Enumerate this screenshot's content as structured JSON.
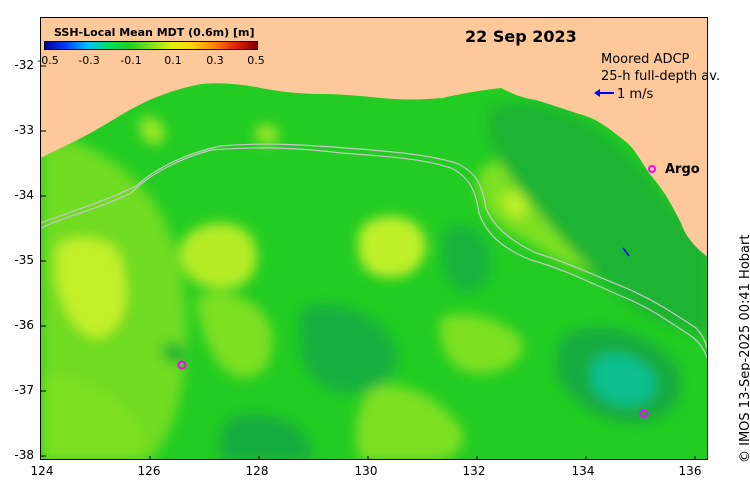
{
  "title": "22 Sep 2023",
  "colorbar": {
    "label": "SSH-Local Mean MDT (0.6m) [m]",
    "ticks": [
      "-0.5",
      "-0.3",
      "-0.1",
      "0.1",
      "0.3",
      "0.5"
    ],
    "colors": [
      "#0000a0",
      "#0040ff",
      "#00c0ff",
      "#00e060",
      "#20d020",
      "#80e020",
      "#e0f000",
      "#ffd000",
      "#ff8000",
      "#e02000",
      "#800000"
    ]
  },
  "y_axis": {
    "ticks": [
      "-32",
      "-33",
      "-34",
      "-35",
      "-36",
      "-37",
      "-38"
    ]
  },
  "x_axis": {
    "ticks": [
      "124",
      "126",
      "128",
      "130",
      "132",
      "134",
      "136"
    ]
  },
  "legend": {
    "adcp_line1": "Moored ADCP",
    "adcp_line2": "25-h full-depth av.",
    "adcp_speed": "1 m/s",
    "adcp_color": "#0000ff",
    "argo_label": "Argo",
    "argo_color": "#ff00ff"
  },
  "credit": "© IMOS 13-Sep-2025 00:41 Hobart",
  "colors": {
    "land": "#fdc99a",
    "ocean_base": "#22cc22",
    "ocean_high": "#aaee22",
    "ocean_low": "#119944",
    "isobath": "#bbbbbb"
  }
}
